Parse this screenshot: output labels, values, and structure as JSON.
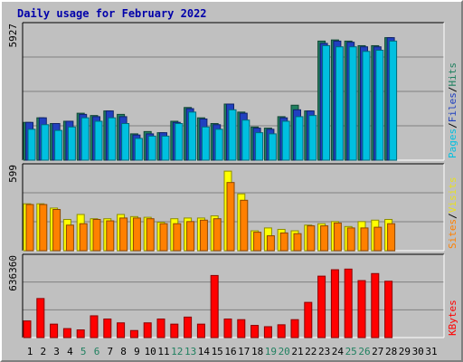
{
  "chart_data": [
    {
      "type": "bar",
      "title": "Daily usage for February 2022",
      "panel": "top",
      "max_label": "5927",
      "ylim": [
        0,
        5927
      ],
      "right_labels": [
        {
          "text": "Pages",
          "color": "#00c0e0"
        },
        {
          "text": "/",
          "color": "#000000"
        },
        {
          "text": "Files",
          "color": "#2040c0"
        },
        {
          "text": "/",
          "color": "#000000"
        },
        {
          "text": "Hits",
          "color": "#208060"
        }
      ],
      "categories": [
        1,
        2,
        3,
        4,
        5,
        6,
        7,
        8,
        9,
        10,
        11,
        12,
        13,
        14,
        15,
        16,
        17,
        18,
        19,
        20,
        21,
        22,
        23,
        24,
        25,
        26,
        27,
        28,
        29,
        30,
        31
      ],
      "series": [
        {
          "name": "Hits",
          "color": "#208060",
          "values": [
            1650,
            1850,
            1600,
            1700,
            2050,
            1950,
            2150,
            2000,
            1150,
            1250,
            1200,
            1700,
            2300,
            1850,
            1600,
            2450,
            2100,
            1450,
            1400,
            1900,
            2400,
            2150,
            5200,
            5250,
            5200,
            5000,
            5000,
            5350,
            0,
            0,
            0
          ]
        },
        {
          "name": "Files",
          "color": "#2040c0",
          "values": [
            1650,
            1850,
            1600,
            1700,
            2000,
            1900,
            2150,
            1900,
            1100,
            1150,
            1200,
            1650,
            2250,
            1800,
            1550,
            2450,
            2050,
            1400,
            1350,
            1850,
            2200,
            2150,
            5100,
            5200,
            5150,
            4950,
            4950,
            5350,
            0,
            0,
            0
          ]
        },
        {
          "name": "Pages",
          "color": "#00c0e0",
          "values": [
            1350,
            1550,
            1300,
            1450,
            1850,
            1700,
            1850,
            1600,
            950,
            1050,
            1050,
            1600,
            2100,
            1450,
            1350,
            2200,
            1750,
            1200,
            1150,
            1700,
            1900,
            1950,
            5000,
            4950,
            4950,
            4750,
            4800,
            5200,
            0,
            0,
            0
          ]
        }
      ]
    },
    {
      "type": "bar",
      "panel": "middle",
      "max_label": "599",
      "ylim": [
        0,
        599
      ],
      "right_labels": [
        {
          "text": "Sites",
          "color": "#ff8000"
        },
        {
          "text": "/",
          "color": "#000000"
        },
        {
          "text": "Visits",
          "color": "#e8e020"
        }
      ],
      "categories": [
        1,
        2,
        3,
        4,
        5,
        6,
        7,
        8,
        9,
        10,
        11,
        12,
        13,
        14,
        15,
        16,
        17,
        18,
        19,
        20,
        21,
        22,
        23,
        24,
        25,
        26,
        27,
        28,
        29,
        30,
        31
      ],
      "series": [
        {
          "name": "Visits",
          "color": "#ffff00",
          "values": [
            330,
            330,
            300,
            220,
            255,
            225,
            225,
            255,
            240,
            235,
            200,
            225,
            230,
            230,
            245,
            560,
            400,
            140,
            160,
            150,
            140,
            180,
            190,
            205,
            170,
            205,
            215,
            220,
            0,
            0,
            0
          ]
        },
        {
          "name": "Sites",
          "color": "#ff8000",
          "values": [
            325,
            325,
            290,
            180,
            190,
            220,
            210,
            230,
            230,
            225,
            190,
            190,
            205,
            215,
            225,
            480,
            355,
            130,
            105,
            125,
            120,
            175,
            175,
            195,
            160,
            160,
            165,
            190,
            0,
            0,
            0
          ]
        }
      ]
    },
    {
      "type": "bar",
      "panel": "bottom",
      "max_label": "636360",
      "ylim": [
        0,
        636360
      ],
      "right_labels": [
        {
          "text": "KBytes",
          "color": "#ff0000"
        }
      ],
      "categories": [
        1,
        2,
        3,
        4,
        5,
        6,
        7,
        8,
        9,
        10,
        11,
        12,
        13,
        14,
        15,
        16,
        17,
        18,
        19,
        20,
        21,
        22,
        23,
        24,
        25,
        26,
        27,
        28,
        29,
        30,
        31
      ],
      "x_label_colors": [
        "#000000",
        "#000000",
        "#000000",
        "#000000",
        "#208060",
        "#208060",
        "#000000",
        "#000000",
        "#000000",
        "#000000",
        "#000000",
        "#208060",
        "#208060",
        "#000000",
        "#000000",
        "#000000",
        "#000000",
        "#000000",
        "#208060",
        "#208060",
        "#000000",
        "#000000",
        "#000000",
        "#000000",
        "#208060",
        "#208060",
        "#000000",
        "#000000",
        "#000000",
        "#000000",
        "#000000"
      ],
      "series": [
        {
          "name": "KBytes",
          "color": "#ff0000",
          "values": [
            130000,
            305000,
            105000,
            70000,
            60000,
            170000,
            145000,
            115000,
            55000,
            115000,
            145000,
            105000,
            160000,
            105000,
            485000,
            145000,
            140000,
            95000,
            85000,
            100000,
            140000,
            275000,
            480000,
            530000,
            535000,
            445000,
            500000,
            440000,
            0,
            0,
            0
          ]
        }
      ]
    }
  ]
}
